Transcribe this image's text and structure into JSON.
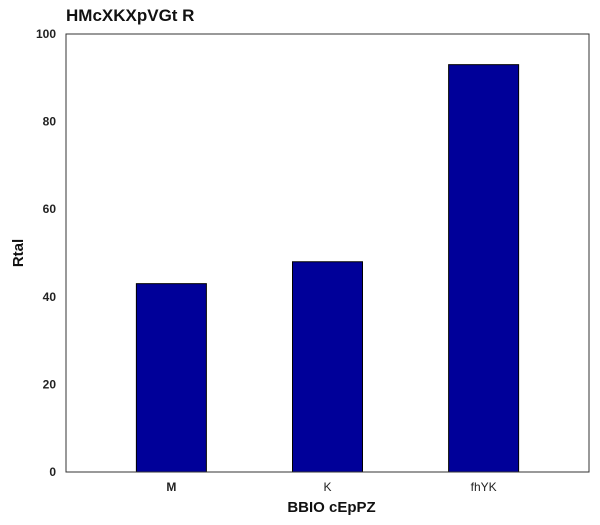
{
  "chart_data": {
    "type": "bar",
    "title": "HMcXKXpVGt R",
    "xlabel": "BBIO cEpPZ",
    "ylabel": "Rtal",
    "categories": [
      "M",
      "K",
      "fhYK"
    ],
    "category_bold": [
      true,
      false,
      false
    ],
    "values": [
      43,
      48,
      93
    ],
    "ylim": [
      0,
      100
    ],
    "yticks": [
      0,
      20,
      40,
      60,
      80,
      100
    ],
    "grid": false,
    "legend": "none",
    "bar_color": "#000099",
    "bar_edge_color": "#000000"
  }
}
